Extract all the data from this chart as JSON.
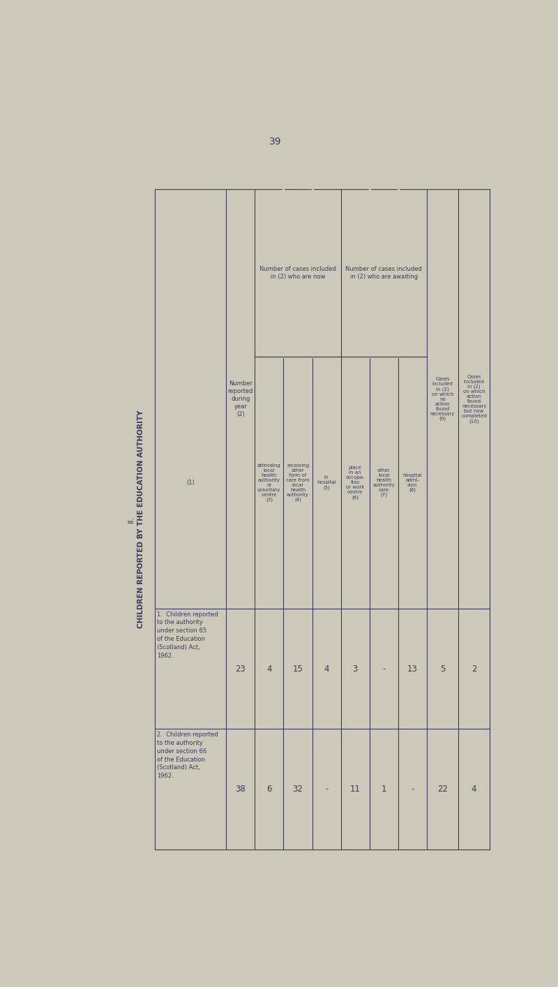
{
  "page_number": "39",
  "title_roman": "II.",
  "title_text": "CHILDREN REPORTED BY THE EDUCATION AUTHORITY",
  "bg_color": "#ccc9bb",
  "text_color": "#3a3a5c",
  "line_color": "#3a3a5c",
  "row1_label": "1.  Children reported\nto the authority\nunder section 65\nof the Education\n(Scotland) Act,\n1962.",
  "row2_label": "2.  Children reported\nto the authority\nunder section 66\nof the Education\n(Scotland) Act,\n1962.",
  "col1_header": "Number\nreported\nduring\nyear\n(2)",
  "group1_header": "Number of cases included\nin (2) who are now",
  "group2_header": "Number of cases included\nin (2) who are awaiting",
  "sub_col_headers": [
    "attending\nlocal\nhealth\nauthority\nor\nvoluntary\ncentre\n(3)",
    "receiving\nother\nform of\ncare from\nlocal\nhealth\nauthority\n(4)",
    "in\nhospital\n(5)",
    "place\nin an\noccupa-\ntion\nor work\ncentre\n(6)",
    "other\nlocal\nhealth\nauthority\ncare\n(7)",
    "hospital\nadmi-\nsion\n(8)"
  ],
  "col9_header": "Cases\nincluded\nin (2)\non which\nno\naction\nfound\nnecessary\n(9)",
  "col10_header": "Cases\nincluded\nin (2)\non which\naction\nfound\nnecessary\nbut now\ncompleted\n(10)",
  "row1_data": [
    "23",
    "4",
    "15",
    "4",
    "3",
    "-",
    "13",
    "5",
    "2"
  ],
  "row2_data": [
    "38",
    "6",
    "32",
    "-",
    "11",
    "1",
    "-",
    "22",
    "4"
  ],
  "col0_subheader": "(1)"
}
